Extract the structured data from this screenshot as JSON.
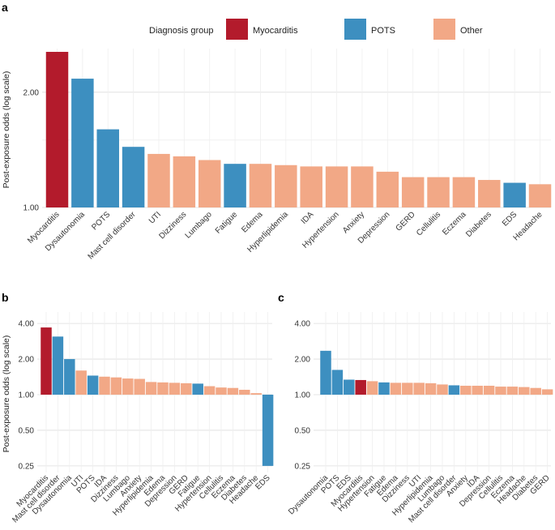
{
  "colors": {
    "Myocarditis": "#b31b2c",
    "POTS": "#3d8fc0",
    "Other": "#f2a886"
  },
  "legend": {
    "title": "Diagnosis group",
    "items": [
      "Myocarditis",
      "POTS",
      "Other"
    ]
  },
  "chart_data": [
    {
      "panel": "a",
      "type": "bar",
      "scale": "log",
      "ylabel": "Post-exposure odds (log scale)",
      "yticks": [
        "1.00",
        "2.00"
      ],
      "ylim": [
        1.0,
        2.6
      ],
      "categories": [
        "Myocarditis",
        "Dysautonomia",
        "POTS",
        "Mast cell disorder",
        "UTI",
        "Dizziness",
        "Lumbago",
        "Fatigue",
        "Edema",
        "Hyperlipidemia",
        "IDA",
        "Hypertension",
        "Anxiety",
        "Depression",
        "GERD",
        "Cellulitis",
        "Eczema",
        "Diabetes",
        "EDS",
        "Headache"
      ],
      "values": [
        2.55,
        2.17,
        1.6,
        1.44,
        1.38,
        1.36,
        1.33,
        1.3,
        1.3,
        1.29,
        1.28,
        1.28,
        1.28,
        1.24,
        1.2,
        1.2,
        1.2,
        1.18,
        1.16,
        1.15
      ],
      "groups": [
        "Myocarditis",
        "POTS",
        "POTS",
        "POTS",
        "Other",
        "Other",
        "Other",
        "POTS",
        "Other",
        "Other",
        "Other",
        "Other",
        "Other",
        "Other",
        "Other",
        "Other",
        "Other",
        "Other",
        "POTS",
        "Other"
      ]
    },
    {
      "panel": "b",
      "type": "bar",
      "scale": "log",
      "ylabel": "Post-exposure odds (log scale)",
      "yticks": [
        "0.25",
        "0.50",
        "1.00",
        "2.00",
        "4.00"
      ],
      "ylim": [
        0.22,
        5.0
      ],
      "categories": [
        "Myocarditis",
        "Mast cell disorder",
        "Dysautonomia",
        "UTI",
        "POTS",
        "IDA",
        "Dizziness",
        "Lumbago",
        "Anxiety",
        "Hyperlipidemia",
        "Edema",
        "Depression",
        "GERD",
        "Fatigue",
        "Hypertension",
        "Cellulitis",
        "Eczema",
        "Diabetes",
        "Headache",
        "EDS"
      ],
      "values": [
        3.7,
        3.1,
        2.0,
        1.6,
        1.45,
        1.42,
        1.4,
        1.37,
        1.36,
        1.28,
        1.27,
        1.26,
        1.25,
        1.24,
        1.18,
        1.15,
        1.14,
        1.1,
        1.03,
        0.25
      ],
      "groups": [
        "Myocarditis",
        "POTS",
        "POTS",
        "Other",
        "POTS",
        "Other",
        "Other",
        "Other",
        "Other",
        "Other",
        "Other",
        "Other",
        "Other",
        "POTS",
        "Other",
        "Other",
        "Other",
        "Other",
        "Other",
        "POTS"
      ]
    },
    {
      "panel": "c",
      "type": "bar",
      "scale": "log",
      "ylabel": "",
      "yticks": [
        "0.25",
        "0.50",
        "1.00",
        "2.00",
        "4.00"
      ],
      "ylim": [
        0.22,
        5.0
      ],
      "categories": [
        "Dysautonomia",
        "POTS",
        "EDS",
        "Myocarditis",
        "Hypertension",
        "Fatigue",
        "Edema",
        "Dizziness",
        "UTI",
        "Hyperlipidemia",
        "Lumbago",
        "Mast cell disorder",
        "Anxiety",
        "IDA",
        "Depression",
        "Cellulitis",
        "Eczema",
        "Headache",
        "Diabetes",
        "GERD"
      ],
      "values": [
        2.35,
        1.62,
        1.34,
        1.33,
        1.3,
        1.27,
        1.26,
        1.26,
        1.26,
        1.25,
        1.22,
        1.2,
        1.19,
        1.19,
        1.19,
        1.17,
        1.17,
        1.16,
        1.14,
        1.11
      ],
      "groups": [
        "POTS",
        "POTS",
        "POTS",
        "Myocarditis",
        "Other",
        "POTS",
        "Other",
        "Other",
        "Other",
        "Other",
        "Other",
        "POTS",
        "Other",
        "Other",
        "Other",
        "Other",
        "Other",
        "Other",
        "Other",
        "Other"
      ]
    }
  ]
}
